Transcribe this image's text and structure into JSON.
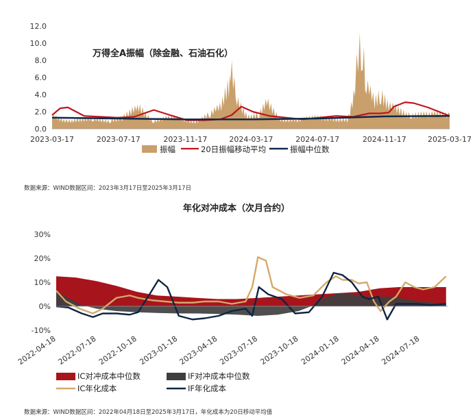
{
  "chart_data": [
    {
      "type": "area+line",
      "title": "万得全A振幅（除金融、石油石化）",
      "xlabel": "",
      "ylabel": "",
      "ylim": [
        0,
        12
      ],
      "y_ticks": [
        "0.0",
        "2.0",
        "4.0",
        "6.0",
        "8.0",
        "10.0",
        "12.0"
      ],
      "x_ticks": [
        "2023-03-17",
        "2023-07-17",
        "2023-11-17",
        "2024-03-17",
        "2024-07-17",
        "2024-11-17",
        "2025-03-17"
      ],
      "grid": false,
      "legend_position": "bottom",
      "series": [
        {
          "name": "振幅",
          "kind": "area",
          "color": "#c9a06b",
          "x": [
            "2023-03-17",
            "2023-04-10",
            "2023-05-05",
            "2023-06-01",
            "2023-07-03",
            "2023-07-25",
            "2023-08-14",
            "2023-08-28",
            "2023-09-20",
            "2023-10-20",
            "2023-11-10",
            "2023-12-05",
            "2024-01-02",
            "2024-01-22",
            "2024-02-05",
            "2024-02-08",
            "2024-02-20",
            "2024-03-10",
            "2024-04-01",
            "2024-04-15",
            "2024-05-10",
            "2024-06-10",
            "2024-07-10",
            "2024-08-10",
            "2024-09-10",
            "2024-09-24",
            "2024-09-30",
            "2024-10-08",
            "2024-10-15",
            "2024-10-30",
            "2024-11-11",
            "2024-11-25",
            "2024-12-10",
            "2025-01-06",
            "2025-02-05",
            "2025-03-17"
          ],
          "values": [
            1.3,
            1.0,
            1.1,
            0.9,
            1.0,
            1.5,
            2.0,
            2.2,
            1.0,
            1.2,
            1.1,
            0.9,
            1.6,
            2.4,
            5.5,
            7.0,
            3.0,
            1.6,
            1.7,
            2.8,
            1.2,
            1.0,
            1.2,
            1.3,
            1.0,
            4.0,
            9.0,
            10.3,
            4.5,
            3.0,
            4.5,
            2.4,
            2.2,
            1.8,
            1.5,
            1.8
          ]
        },
        {
          "name": "20日振幅移动平均",
          "kind": "line",
          "color": "#c0141e",
          "x": [
            "2023-03-17",
            "2023-04-01",
            "2023-04-15",
            "2023-05-15",
            "2023-06-15",
            "2023-07-15",
            "2023-08-15",
            "2023-09-20",
            "2023-10-20",
            "2023-11-20",
            "2023-12-20",
            "2024-01-20",
            "2024-02-10",
            "2024-02-28",
            "2024-03-20",
            "2024-04-20",
            "2024-05-20",
            "2024-06-20",
            "2024-07-20",
            "2024-08-20",
            "2024-09-20",
            "2024-10-05",
            "2024-10-20",
            "2024-11-10",
            "2024-11-25",
            "2024-12-05",
            "2024-12-25",
            "2025-01-10",
            "2025-02-05",
            "2025-03-17"
          ],
          "values": [
            1.6,
            2.4,
            2.5,
            1.5,
            1.4,
            1.3,
            1.4,
            2.2,
            1.6,
            1.0,
            1.0,
            1.1,
            1.6,
            2.6,
            2.0,
            1.5,
            1.3,
            1.1,
            1.3,
            1.5,
            1.4,
            1.6,
            1.8,
            1.8,
            1.9,
            2.6,
            3.1,
            3.0,
            2.5,
            1.5
          ]
        },
        {
          "name": "振幅中位数",
          "kind": "line",
          "color": "#102a4c",
          "x": [
            "2023-03-17",
            "2023-07-17",
            "2023-11-17",
            "2024-03-17",
            "2024-07-17",
            "2024-11-17",
            "2025-03-17"
          ],
          "values": [
            1.3,
            1.2,
            1.1,
            1.1,
            1.2,
            1.45,
            1.5
          ]
        }
      ]
    },
    {
      "type": "area+line",
      "title": "年化对冲成本（次月合约）",
      "xlabel": "",
      "ylabel": "",
      "ylim": [
        -10,
        30
      ],
      "y_ticks": [
        "-10%",
        "0%",
        "10%",
        "20%",
        "30%"
      ],
      "x_ticks": [
        "2022-04-18",
        "2022-07-18",
        "2022-10-18",
        "2023-01-18",
        "2023-04-18",
        "2023-07-18",
        "2023-10-18",
        "2024-01-18",
        "2024-04-18",
        "2024-07-18"
      ],
      "grid": false,
      "legend_position": "bottom",
      "series": [
        {
          "name": "IC对冲成本中位数",
          "kind": "area",
          "color": "#a8141c",
          "x": [
            "2022-04-18",
            "2022-06-01",
            "2022-07-18",
            "2022-09-01",
            "2022-10-18",
            "2022-12-01",
            "2023-01-18",
            "2023-03-01",
            "2023-04-18",
            "2023-06-01",
            "2023-07-18",
            "2023-09-01",
            "2023-10-18",
            "2023-12-01",
            "2024-01-18",
            "2024-03-01",
            "2024-04-18",
            "2024-06-01",
            "2024-07-18",
            "2024-09-15"
          ],
          "values": [
            12.5,
            12.0,
            10.5,
            8.5,
            6.0,
            4.5,
            4.0,
            3.5,
            3.0,
            3.0,
            3.5,
            4.0,
            4.5,
            5.0,
            5.5,
            6.0,
            7.5,
            8.0,
            8.0,
            8.0
          ]
        },
        {
          "name": "IF对冲成本中位数",
          "kind": "area",
          "color": "#3f3f3f",
          "x": [
            "2022-04-18",
            "2022-05-15",
            "2022-06-15",
            "2022-07-18",
            "2022-09-01",
            "2022-10-18",
            "2022-12-01",
            "2023-01-18",
            "2023-03-01",
            "2023-04-18",
            "2023-06-01",
            "2023-07-18",
            "2023-09-01",
            "2023-10-18",
            "2023-11-15",
            "2023-12-15",
            "2024-01-18",
            "2024-02-15",
            "2024-03-15",
            "2024-04-18",
            "2024-05-15",
            "2024-06-15",
            "2024-07-18",
            "2024-09-15"
          ],
          "values": [
            6.0,
            3.5,
            0.5,
            -1.0,
            -2.0,
            -2.5,
            -2.8,
            -3.0,
            -3.0,
            -3.2,
            -3.5,
            -4.0,
            -3.5,
            -2.0,
            0.0,
            3.5,
            5.5,
            5.0,
            4.0,
            4.0,
            4.0,
            3.0,
            2.0,
            1.0
          ]
        },
        {
          "name": "IC年化成本",
          "kind": "line",
          "color": "#d4a96a",
          "x": [
            "2022-04-18",
            "2022-05-10",
            "2022-06-10",
            "2022-07-10",
            "2022-08-01",
            "2022-09-01",
            "2022-10-01",
            "2022-10-20",
            "2022-11-20",
            "2022-12-20",
            "2023-01-20",
            "2023-02-20",
            "2023-03-20",
            "2023-04-20",
            "2023-05-20",
            "2023-06-20",
            "2023-07-05",
            "2023-07-18",
            "2023-08-05",
            "2023-08-20",
            "2023-09-20",
            "2023-10-20",
            "2023-11-20",
            "2023-12-20",
            "2024-01-10",
            "2024-01-25",
            "2024-02-15",
            "2024-03-01",
            "2024-03-20",
            "2024-04-05",
            "2024-04-20",
            "2024-05-10",
            "2024-05-25",
            "2024-06-15",
            "2024-07-05",
            "2024-07-25",
            "2024-08-20",
            "2024-09-15"
          ],
          "values": [
            6.5,
            2.0,
            -1.0,
            -3.0,
            -1.0,
            3.5,
            4.5,
            3.5,
            2.5,
            2.0,
            1.5,
            1.5,
            2.0,
            2.0,
            1.0,
            2.0,
            8.0,
            20.5,
            19.0,
            8.0,
            5.0,
            3.5,
            4.5,
            10.0,
            12.5,
            11.0,
            11.0,
            9.5,
            10.0,
            2.0,
            -2.0,
            2.0,
            4.0,
            10.0,
            8.0,
            7.0,
            8.0,
            12.5
          ]
        },
        {
          "name": "IF年化成本",
          "kind": "line",
          "color": "#0f2442",
          "x": [
            "2022-04-18",
            "2022-05-15",
            "2022-06-15",
            "2022-07-10",
            "2022-08-01",
            "2022-09-01",
            "2022-10-01",
            "2022-10-20",
            "2022-11-15",
            "2022-12-05",
            "2022-12-25",
            "2023-01-20",
            "2023-02-20",
            "2023-03-20",
            "2023-04-20",
            "2023-05-20",
            "2023-06-20",
            "2023-07-05",
            "2023-07-20",
            "2023-08-10",
            "2023-09-10",
            "2023-10-10",
            "2023-11-10",
            "2023-12-10",
            "2024-01-05",
            "2024-01-25",
            "2024-02-15",
            "2024-03-10",
            "2024-03-25",
            "2024-04-15",
            "2024-05-05",
            "2024-05-25",
            "2024-06-15",
            "2024-07-10",
            "2024-08-10",
            "2024-09-15"
          ],
          "values": [
            0.0,
            -0.5,
            -3.0,
            -4.5,
            -3.0,
            -3.0,
            -3.5,
            -2.5,
            5.0,
            11.0,
            8.0,
            -4.0,
            -5.5,
            -5.0,
            -4.0,
            -2.0,
            -1.0,
            -4.0,
            8.0,
            5.0,
            3.0,
            -3.0,
            -2.5,
            4.0,
            14.0,
            13.0,
            10.0,
            4.0,
            3.0,
            4.0,
            -5.5,
            1.0,
            1.0,
            1.0,
            0.5,
            1.0
          ]
        }
      ]
    }
  ],
  "notes": {
    "source1": "数据来源：WIND数据区间：2023年3月17日至2025年3月17日",
    "source2": "数据来源：WIND数据区间：2022年04月18日至2025年3月17日，年化成本为20日移动平均值"
  }
}
